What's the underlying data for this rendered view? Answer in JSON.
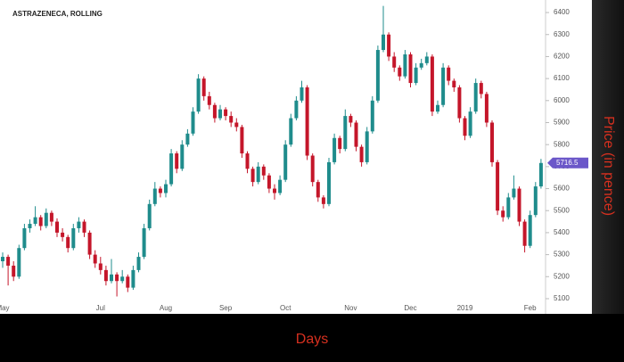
{
  "chart_data": {
    "type": "candlestick",
    "title": "ASTRAZENECA, ROLLING",
    "x_label": "Days",
    "y_label": "Price (in pence)",
    "up_color": "#1f8c8c",
    "down_color": "#c4162a",
    "last_price_color": "#6b57c9",
    "ylim": [
      5031,
      6457
    ],
    "yticks": [
      5100,
      5200,
      5300,
      5400,
      5500,
      5600,
      5700,
      5800,
      5900,
      6000,
      6100,
      6200,
      6300,
      6400
    ],
    "categories": [
      "May",
      null,
      null,
      null,
      null,
      null,
      null,
      null,
      null,
      null,
      null,
      null,
      null,
      null,
      null,
      null,
      null,
      null,
      "Jul",
      null,
      null,
      null,
      null,
      null,
      null,
      null,
      null,
      null,
      null,
      null,
      "Aug",
      null,
      null,
      null,
      null,
      null,
      null,
      null,
      null,
      null,
      null,
      "Sep",
      null,
      null,
      null,
      null,
      null,
      null,
      null,
      null,
      null,
      null,
      "Oct",
      null,
      null,
      null,
      null,
      null,
      null,
      null,
      null,
      null,
      null,
      null,
      "Nov",
      null,
      null,
      null,
      null,
      null,
      null,
      null,
      null,
      null,
      null,
      "Dec",
      null,
      null,
      null,
      null,
      null,
      null,
      null,
      null,
      null,
      "2019",
      null,
      null,
      null,
      null,
      null,
      null,
      null,
      null,
      null,
      null,
      null,
      "Feb",
      null,
      null
    ],
    "ohlc": [
      [
        5270,
        5310,
        5240,
        5290
      ],
      [
        5290,
        5300,
        5160,
        5250
      ],
      [
        5250,
        5270,
        5180,
        5200
      ],
      [
        5200,
        5345,
        5190,
        5330
      ],
      [
        5330,
        5440,
        5320,
        5420
      ],
      [
        5420,
        5460,
        5400,
        5440
      ],
      [
        5440,
        5520,
        5430,
        5470
      ],
      [
        5470,
        5480,
        5410,
        5430
      ],
      [
        5430,
        5510,
        5420,
        5490
      ],
      [
        5490,
        5500,
        5430,
        5450
      ],
      [
        5450,
        5465,
        5380,
        5400
      ],
      [
        5400,
        5420,
        5360,
        5380
      ],
      [
        5380,
        5390,
        5310,
        5330
      ],
      [
        5330,
        5440,
        5320,
        5420
      ],
      [
        5420,
        5470,
        5400,
        5450
      ],
      [
        5450,
        5460,
        5380,
        5400
      ],
      [
        5400,
        5410,
        5280,
        5300
      ],
      [
        5300,
        5320,
        5240,
        5260
      ],
      [
        5260,
        5290,
        5210,
        5230
      ],
      [
        5230,
        5250,
        5160,
        5180
      ],
      [
        5180,
        5280,
        5170,
        5210
      ],
      [
        5210,
        5220,
        5110,
        5180
      ],
      [
        5180,
        5230,
        5170,
        5200
      ],
      [
        5200,
        5210,
        5130,
        5150
      ],
      [
        5150,
        5250,
        5140,
        5230
      ],
      [
        5230,
        5310,
        5220,
        5290
      ],
      [
        5290,
        5440,
        5280,
        5420
      ],
      [
        5420,
        5550,
        5410,
        5530
      ],
      [
        5530,
        5630,
        5520,
        5600
      ],
      [
        5600,
        5610,
        5560,
        5580
      ],
      [
        5580,
        5640,
        5560,
        5620
      ],
      [
        5620,
        5780,
        5610,
        5760
      ],
      [
        5760,
        5770,
        5670,
        5690
      ],
      [
        5690,
        5820,
        5680,
        5800
      ],
      [
        5800,
        5870,
        5790,
        5850
      ],
      [
        5850,
        5970,
        5840,
        5950
      ],
      [
        5950,
        6120,
        5940,
        6100
      ],
      [
        6100,
        6110,
        6000,
        6020
      ],
      [
        6020,
        6040,
        5960,
        5980
      ],
      [
        5980,
        5990,
        5900,
        5920
      ],
      [
        5920,
        5980,
        5910,
        5960
      ],
      [
        5960,
        5970,
        5910,
        5930
      ],
      [
        5930,
        5950,
        5880,
        5900
      ],
      [
        5900,
        5920,
        5860,
        5880
      ],
      [
        5880,
        5890,
        5740,
        5760
      ],
      [
        5760,
        5770,
        5670,
        5690
      ],
      [
        5690,
        5700,
        5610,
        5630
      ],
      [
        5630,
        5720,
        5620,
        5700
      ],
      [
        5700,
        5710,
        5640,
        5660
      ],
      [
        5660,
        5670,
        5580,
        5600
      ],
      [
        5600,
        5620,
        5550,
        5580
      ],
      [
        5580,
        5660,
        5570,
        5640
      ],
      [
        5640,
        5820,
        5630,
        5800
      ],
      [
        5800,
        5940,
        5790,
        5920
      ],
      [
        5920,
        6020,
        5910,
        6000
      ],
      [
        6000,
        6090,
        5990,
        6060
      ],
      [
        6060,
        6070,
        5730,
        5750
      ],
      [
        5750,
        5760,
        5610,
        5630
      ],
      [
        5630,
        5640,
        5540,
        5560
      ],
      [
        5560,
        5570,
        5510,
        5530
      ],
      [
        5530,
        5740,
        5520,
        5720
      ],
      [
        5720,
        5850,
        5710,
        5830
      ],
      [
        5830,
        5840,
        5760,
        5780
      ],
      [
        5780,
        5960,
        5770,
        5930
      ],
      [
        5930,
        5940,
        5880,
        5900
      ],
      [
        5900,
        5910,
        5770,
        5790
      ],
      [
        5790,
        5800,
        5700,
        5720
      ],
      [
        5720,
        5880,
        5710,
        5860
      ],
      [
        5860,
        6020,
        5850,
        6000
      ],
      [
        6000,
        6250,
        5990,
        6230
      ],
      [
        6230,
        6430,
        6220,
        6300
      ],
      [
        6300,
        6310,
        6180,
        6200
      ],
      [
        6200,
        6220,
        6130,
        6150
      ],
      [
        6150,
        6160,
        6090,
        6110
      ],
      [
        6110,
        6230,
        6100,
        6210
      ],
      [
        6210,
        6220,
        6060,
        6080
      ],
      [
        6080,
        6170,
        6070,
        6150
      ],
      [
        6150,
        6190,
        6140,
        6170
      ],
      [
        6170,
        6220,
        6160,
        6200
      ],
      [
        6200,
        6210,
        5930,
        5950
      ],
      [
        5950,
        6000,
        5940,
        5980
      ],
      [
        5980,
        6170,
        5970,
        6150
      ],
      [
        6150,
        6160,
        6070,
        6090
      ],
      [
        6090,
        6100,
        6040,
        6060
      ],
      [
        6060,
        6070,
        5900,
        5920
      ],
      [
        5920,
        5930,
        5820,
        5840
      ],
      [
        5840,
        5970,
        5830,
        5950
      ],
      [
        5950,
        6100,
        5940,
        6080
      ],
      [
        6080,
        6090,
        6010,
        6030
      ],
      [
        6030,
        6040,
        5880,
        5900
      ],
      [
        5900,
        5910,
        5700,
        5720
      ],
      [
        5720,
        5730,
        5480,
        5500
      ],
      [
        5500,
        5520,
        5450,
        5470
      ],
      [
        5470,
        5580,
        5460,
        5560
      ],
      [
        5560,
        5660,
        5550,
        5600
      ],
      [
        5600,
        5610,
        5430,
        5450
      ],
      [
        5450,
        5460,
        5310,
        5340
      ],
      [
        5340,
        5500,
        5330,
        5480
      ],
      [
        5480,
        5630,
        5470,
        5610
      ],
      [
        5610,
        5735,
        5600,
        5716.5
      ]
    ]
  }
}
